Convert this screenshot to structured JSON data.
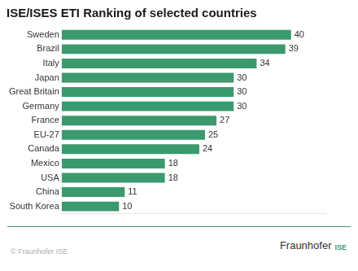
{
  "chart_data": {
    "type": "bar",
    "orientation": "horizontal",
    "title": "ISE/ISES ETI Ranking of selected countries",
    "categories": [
      "Sweden",
      "Brazil",
      "Italy",
      "Japan",
      "Great Britain",
      "Germany",
      "France",
      "EU-27",
      "Canada",
      "Mexico",
      "USA",
      "China",
      "South Korea"
    ],
    "values": [
      40,
      39,
      34,
      30,
      30,
      30,
      27,
      25,
      24,
      18,
      18,
      11,
      10
    ],
    "color": "#3a9a6e",
    "xlim": [
      0,
      46
    ],
    "grid": false,
    "data_labels": true,
    "tick_labels": "y",
    "annotations": [
      "© Fraunhofer ISE",
      "Fraunhofer",
      "ISE"
    ]
  }
}
